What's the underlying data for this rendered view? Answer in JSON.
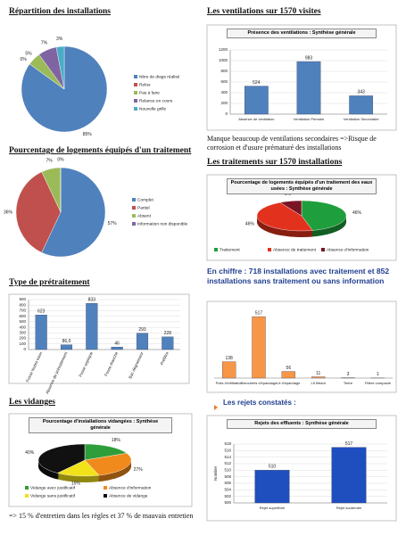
{
  "chart_data": [
    {
      "type": "pie",
      "title": "Répartition des installations",
      "categories": [
        "Nbre de diags réalisé",
        "Refus",
        "Pas à faire",
        "Relance en cours",
        "Nouvelle grille"
      ],
      "values": [
        85,
        0,
        5,
        7,
        3
      ],
      "value_labels": [
        "85%",
        "0%",
        "5%",
        "7%",
        "3%"
      ],
      "colors": [
        "#4f81bd",
        "#c0504d",
        "#9bbb59",
        "#8064a2",
        "#4bacc6"
      ]
    },
    {
      "type": "bar",
      "title": "Les ventilations sur 1570 visites",
      "subtitle": "Présence des ventilations : Synthèse générale",
      "categories": [
        "Absence de ventilation",
        "Ventilation Primaire",
        "Ventilation Secondaire"
      ],
      "values": [
        524,
        983,
        343
      ],
      "color": "#4f81bd",
      "ylim": [
        0,
        1200
      ],
      "yticks": [
        0,
        200,
        400,
        600,
        800,
        1000,
        1200
      ],
      "annotation": "Manque beaucoup de ventilations secondaires =>Risque de corrosion et d'usure prématuré des installations"
    },
    {
      "type": "pie",
      "title": "Pourcentage de logements équipés d'un traitement",
      "categories": [
        "Complet",
        "Partiel",
        "Absent",
        "Information non disponible"
      ],
      "values": [
        57,
        36,
        7,
        0
      ],
      "value_labels": [
        "57%",
        "36%",
        "7%",
        "0%"
      ],
      "colors": [
        "#4f81bd",
        "#c0504d",
        "#9bbb59",
        "#8064a2"
      ]
    },
    {
      "type": "pie",
      "three_d": true,
      "title": "Les traitements sur 1570 installations",
      "subtitle": "Pourcentage de logements équipés d'un traitement des eaux usées : Synthèse générale",
      "categories": [
        "Traitement",
        "Absence de traitement",
        "Absence d'information"
      ],
      "values": [
        46,
        46,
        8
      ],
      "value_labels": [
        "46%",
        "46%",
        "8%"
      ],
      "colors": [
        "#1e9e3c",
        "#e2321e",
        "#7a1424"
      ]
    },
    {
      "type": "bar",
      "title": "Type de prétraitement",
      "categories": [
        "Fosse toutes eaux",
        "Absence de prétraitement",
        "Fosse septique",
        "Fosse étanche",
        "Bac dégraisseur",
        "Préfiltre"
      ],
      "values": [
        623,
        86,
        833,
        46,
        293,
        228
      ],
      "value_labels": [
        "623",
        "86,0",
        "833",
        "46",
        "293",
        "228"
      ],
      "color": "#4f81bd",
      "ylim": [
        0,
        900
      ],
      "yticks": [
        0,
        100,
        200,
        300,
        400,
        500,
        600,
        700,
        800,
        900
      ]
    },
    {
      "type": "bar",
      "title": "En chiffre : 718 installations avec traitement et 852 installations sans traitement ou sans information",
      "categories": [
        "Puits d'infiltration",
        "Tranchées d'épandage",
        "Lit d'épandage",
        "Lit filtrant",
        "Tertre",
        "Filière compacte"
      ],
      "values": [
        138,
        517,
        56,
        11,
        3,
        1
      ],
      "color": "#f79646",
      "ylim": [
        0,
        600
      ]
    },
    {
      "type": "pie",
      "three_d": true,
      "title": "Les vidanges",
      "subtitle": "Pourcentage d'installations vidangées : Synthèse générale",
      "categories": [
        "Vidange avec justificatif",
        "Absence d'information",
        "Vidange sans justificatif",
        "Absence de vidange"
      ],
      "values": [
        18,
        27,
        15,
        40
      ],
      "value_labels": [
        "18%",
        "27%",
        "15%",
        "40%"
      ],
      "colors": [
        "#2e9e3a",
        "#f08a1c",
        "#f2e21a",
        "#111111"
      ],
      "annotation": "=> 15 % d'entretien dans les règles et 37 % de mauvais entretien"
    },
    {
      "type": "bar",
      "title": "Les rejets constatés :",
      "subtitle": "Rejets des effluents : Synthèse générale",
      "categories": [
        "Rejet superficiel",
        "Rejet souterrain"
      ],
      "values": [
        510,
        517
      ],
      "color": "#1f4fbf",
      "ylim": [
        500,
        518
      ],
      "yticks": [
        500,
        502,
        504,
        506,
        508,
        510,
        512,
        514,
        516,
        518
      ],
      "y_label": "Nombre"
    }
  ]
}
